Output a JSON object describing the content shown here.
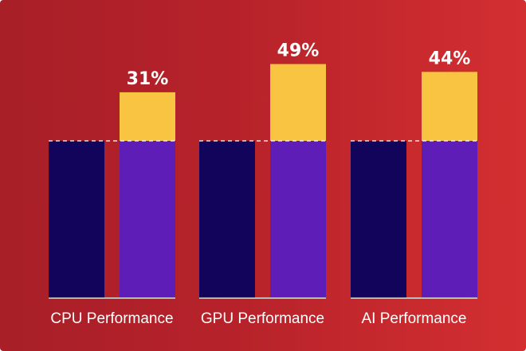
{
  "chart_data": {
    "type": "bar",
    "categories": [
      "CPU Performance",
      "GPU Performance",
      "AI Performance"
    ],
    "baseline_value": 100,
    "gain_labels": [
      "31%",
      "49%",
      "44%"
    ],
    "series": [
      {
        "values": [
          100,
          100,
          100
        ]
      },
      {
        "values": [
          131,
          149,
          144
        ]
      }
    ],
    "ylim": [
      0,
      180
    ],
    "grid": false,
    "legend": "none",
    "colors": {
      "baseline_bar": "#12045b",
      "new_bar": "#5d1db6",
      "gain_segment": "#f8c441",
      "baseline_line": "#ffffff",
      "background_left": "#a81f28",
      "background_right": "#d32f31"
    }
  }
}
